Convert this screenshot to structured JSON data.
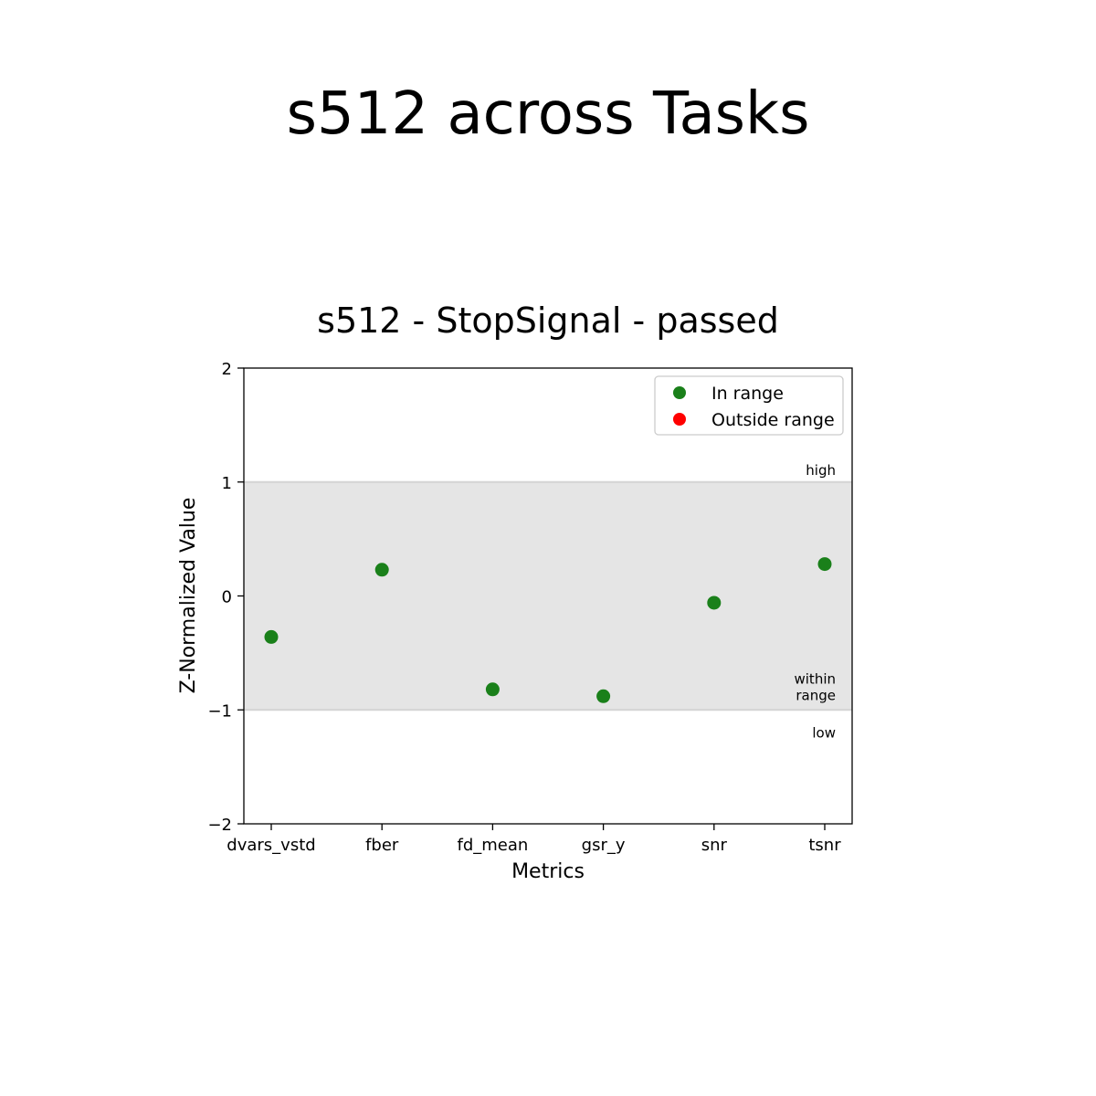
{
  "figure": {
    "title": "s512 across Tasks"
  },
  "chart_data": {
    "type": "scatter",
    "title": "s512 - StopSignal - passed",
    "xlabel": "Metrics",
    "ylabel": "Z-Normalized Value",
    "categories": [
      "dvars_vstd",
      "fber",
      "fd_mean",
      "gsr_y",
      "snr",
      "tsnr"
    ],
    "values": [
      -0.36,
      0.23,
      -0.82,
      -0.88,
      -0.06,
      0.28
    ],
    "ylim": [
      -2,
      2
    ],
    "yticks": [
      2,
      1,
      0,
      -1,
      -2
    ],
    "ytick_labels": [
      "2",
      "1",
      "0",
      "−1",
      "−2"
    ],
    "normal_range": [
      -1,
      1
    ],
    "band_color": "#e5e5e5",
    "grid": false,
    "legend": {
      "position": "top-right",
      "entries": [
        {
          "label": "In range",
          "color": "#1a801a"
        },
        {
          "label": "Outside range",
          "color": "#ff0000"
        }
      ]
    },
    "annotations": [
      {
        "text": "high",
        "y": 1
      },
      {
        "text": "within\nrange",
        "y": -1
      },
      {
        "text": "low",
        "y": -1
      }
    ],
    "point_color": "#1a801a"
  }
}
